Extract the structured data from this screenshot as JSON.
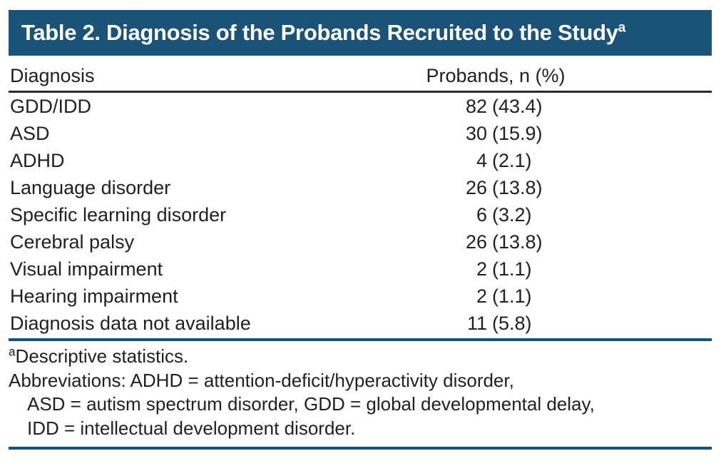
{
  "title": {
    "text": "Table 2. Diagnosis of the Probands Recruited to the Study",
    "superscript": "a"
  },
  "table": {
    "columns": [
      "Diagnosis",
      "Probands, n (%)"
    ],
    "rows": [
      {
        "label": "GDD/IDD",
        "n": "82",
        "pct": "(43.4)"
      },
      {
        "label": "ASD",
        "n": "30",
        "pct": "(15.9)"
      },
      {
        "label": "ADHD",
        "n": "4",
        "pct": "(2.1)"
      },
      {
        "label": "Language disorder",
        "n": "26",
        "pct": "(13.8)"
      },
      {
        "label": "Specific learning disorder",
        "n": "6",
        "pct": "(3.2)"
      },
      {
        "label": "Cerebral palsy",
        "n": "26",
        "pct": "(13.8)"
      },
      {
        "label": "Visual impairment",
        "n": "2",
        "pct": "(1.1)"
      },
      {
        "label": "Hearing impairment",
        "n": "2",
        "pct": "(1.1)"
      },
      {
        "label": "Diagnosis data not available",
        "n": "11",
        "pct": "(5.8)"
      }
    ]
  },
  "footnote": {
    "marker": "a",
    "text": "Descriptive statistics."
  },
  "abbreviations": [
    "Abbreviations: ADHD = attention-deficit/hyperactivity disorder,",
    "ASD = autism spectrum disorder, GDD = global developmental delay,",
    "IDD = intellectual development disorder."
  ],
  "colors": {
    "header_bar": "#1A5377",
    "rule_blue": "#15527E",
    "rule_dark": "#2B2B2B",
    "text": "#231F20",
    "title_text": "#FFFFFF",
    "background": "#FFFFFF"
  }
}
